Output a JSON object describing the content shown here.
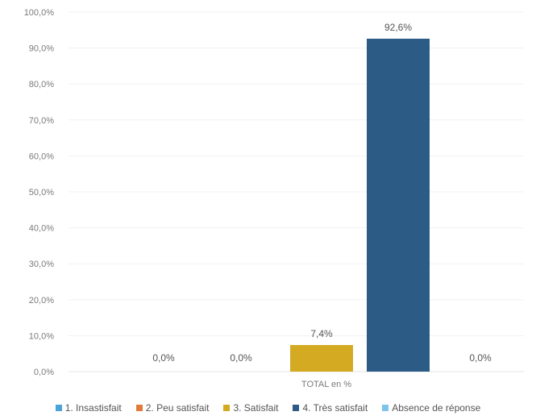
{
  "chart_data": {
    "type": "bar",
    "categories": [
      "TOTAL en %"
    ],
    "series": [
      {
        "name": "1. Insastisfait",
        "values": [
          0.0
        ],
        "label": "0,0%",
        "color": "#4aa3d8"
      },
      {
        "name": "2. Peu satisfait",
        "values": [
          0.0
        ],
        "label": "0,0%",
        "color": "#e07b39"
      },
      {
        "name": "3. Satisfait",
        "values": [
          7.4
        ],
        "label": "7,4%",
        "color": "#d4aa22"
      },
      {
        "name": "4. Très satisfait",
        "values": [
          92.6
        ],
        "label": "92,6%",
        "color": "#2c5b86"
      },
      {
        "name": "Absence de réponse",
        "values": [
          0.0
        ],
        "label": "0,0%",
        "color": "#7cc4ea"
      }
    ],
    "y_ticks": [
      "0,0%",
      "10,0%",
      "20,0%",
      "30,0%",
      "40,0%",
      "50,0%",
      "60,0%",
      "70,0%",
      "80,0%",
      "90,0%",
      "100,0%"
    ],
    "ylim": [
      0,
      100
    ],
    "xlabel": "TOTAL en %",
    "ylabel": "",
    "title": "",
    "grid": true,
    "legend_position": "bottom"
  }
}
